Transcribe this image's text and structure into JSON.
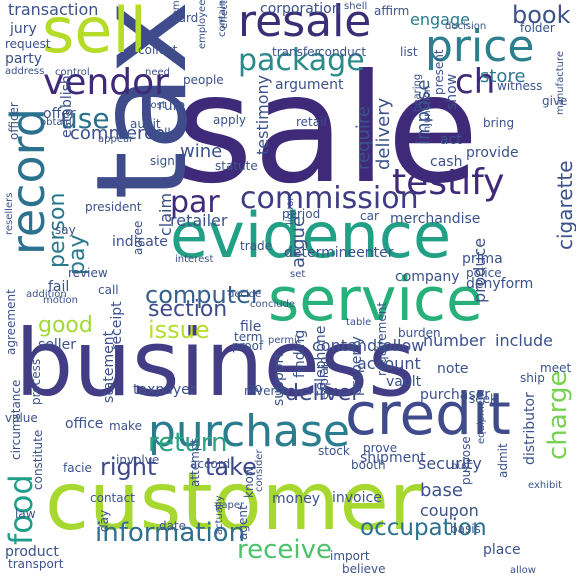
{
  "words": [
    {
      "text": "sale",
      "color": "#3f2a7a"
    },
    {
      "text": "business",
      "color": "#433d86"
    },
    {
      "text": "tax",
      "color": "#3f4b8a"
    },
    {
      "text": "customer",
      "color": "#a6d830"
    },
    {
      "text": "evidence",
      "color": "#21a086"
    },
    {
      "text": "service",
      "color": "#27b07a"
    },
    {
      "text": "credit",
      "color": "#3f4b8a"
    },
    {
      "text": "sell",
      "color": "#b6dc2a"
    },
    {
      "text": "purchase",
      "color": "#2a7d8e"
    },
    {
      "text": "resale",
      "color": "#3a2f77"
    },
    {
      "text": "price",
      "color": "#2d7f8e"
    },
    {
      "text": "record",
      "color": "#2c728e"
    },
    {
      "text": "testify",
      "color": "#3f2a7a"
    },
    {
      "text": "vendor",
      "color": "#3f2a7a"
    },
    {
      "text": "package",
      "color": "#2a8a8a"
    },
    {
      "text": "food",
      "color": "#1f9e89"
    },
    {
      "text": "commission",
      "color": "#3f3c85"
    },
    {
      "text": "return",
      "color": "#2aa57f"
    },
    {
      "text": "information",
      "color": "#2f6f8e"
    },
    {
      "text": "receive",
      "color": "#4cc26c"
    },
    {
      "text": "occupation",
      "color": "#2c728e"
    },
    {
      "text": "charge",
      "color": "#7ad151"
    },
    {
      "text": "computer",
      "color": "#355f8d"
    },
    {
      "text": "issue",
      "color": "#b5de2b"
    },
    {
      "text": "book",
      "color": "#3b528b"
    },
    {
      "text": "ch",
      "color": "#3f2a7a"
    },
    {
      "text": "deliver",
      "color": "#3f4b8a"
    },
    {
      "text": "section",
      "color": "#3f4b8a"
    },
    {
      "text": "good",
      "color": "#a2da37"
    },
    {
      "text": "right",
      "color": "#3e4989"
    },
    {
      "text": "take",
      "color": "#3e4989"
    },
    {
      "text": "use",
      "color": "#2d708e"
    },
    {
      "text": "par",
      "color": "#3f2a7a"
    },
    {
      "text": "person",
      "color": "#2a788e"
    },
    {
      "text": "pay",
      "color": "#2a788e"
    },
    {
      "text": "argue",
      "color": "#3b528b"
    },
    {
      "text": "cigarette",
      "color": "#3b528b"
    },
    {
      "text": "delivery",
      "color": "#3b528b"
    },
    {
      "text": "require",
      "color": "#3b528b"
    },
    {
      "text": "impose",
      "color": "#3b528b"
    },
    {
      "text": "testimony",
      "color": "#3b528b"
    },
    {
      "text": "engage",
      "color": "#2a788e"
    },
    {
      "text": "store",
      "color": "#2a788e"
    },
    {
      "text": "wine",
      "color": "#3b528b"
    },
    {
      "text": "claim",
      "color": "#3b528b"
    },
    {
      "text": "retailer",
      "color": "#3b528b"
    },
    {
      "text": "commerce",
      "color": "#3b528b"
    },
    {
      "text": "transaction",
      "color": "#3b528b"
    },
    {
      "text": "base",
      "color": "#3b528b"
    },
    {
      "text": "coupon",
      "color": "#3b528b"
    },
    {
      "text": "money",
      "color": "#3b528b"
    },
    {
      "text": "invoice",
      "color": "#3b528b"
    },
    {
      "text": "security",
      "color": "#3b528b"
    },
    {
      "text": "shipment",
      "color": "#3b528b"
    },
    {
      "text": "contendfollow",
      "color": "#3b528b"
    },
    {
      "text": "determineenter",
      "color": "#3b528b"
    },
    {
      "text": "merchandise",
      "color": "#3b528b"
    },
    {
      "text": "provide",
      "color": "#3b528b"
    },
    {
      "text": "account",
      "color": "#3b528b"
    },
    {
      "text": "purchaser",
      "color": "#3b528b"
    },
    {
      "text": "number",
      "color": "#3b528b"
    },
    {
      "text": "include",
      "color": "#3b528b"
    },
    {
      "text": "company",
      "color": "#3b528b"
    },
    {
      "text": "denyform",
      "color": "#3b528b"
    },
    {
      "text": "produce",
      "color": "#3b528b"
    },
    {
      "text": "vault",
      "color": "#3b528b"
    },
    {
      "text": "note",
      "color": "#3b528b"
    },
    {
      "text": "property",
      "color": "#3b528b"
    },
    {
      "text": "statement",
      "color": "#3b528b"
    },
    {
      "text": "telephone",
      "color": "#3b528b"
    },
    {
      "text": "taxpayer",
      "color": "#3b528b"
    },
    {
      "text": "receipt",
      "color": "#3b528b"
    },
    {
      "text": "indicate",
      "color": "#3b528b"
    },
    {
      "text": "agree",
      "color": "#3b528b"
    },
    {
      "text": "corporation",
      "color": "#3b528b"
    },
    {
      "text": "jury",
      "color": "#3b528b"
    },
    {
      "text": "party",
      "color": "#3b528b"
    },
    {
      "text": "request",
      "color": "#3b528b"
    },
    {
      "text": "card",
      "color": "#3b528b"
    },
    {
      "text": "item",
      "color": "#3b528b"
    },
    {
      "text": "affirm",
      "color": "#3b528b"
    },
    {
      "text": "folder",
      "color": "#3b528b"
    },
    {
      "text": "decision",
      "color": "#3b528b"
    },
    {
      "text": "shell",
      "color": "#3b528b"
    },
    {
      "text": "conduct",
      "color": "#3b528b"
    },
    {
      "text": "transfer",
      "color": "#3b528b"
    },
    {
      "text": "collect",
      "color": "#3b528b"
    },
    {
      "text": "list",
      "color": "#3b528b"
    },
    {
      "text": "address",
      "color": "#3b528b"
    },
    {
      "text": "control",
      "color": "#3b528b"
    },
    {
      "text": "need",
      "color": "#3b528b"
    },
    {
      "text": "people",
      "color": "#3b528b"
    },
    {
      "text": "argument",
      "color": "#3b528b"
    },
    {
      "text": "witness",
      "color": "#3b528b"
    },
    {
      "text": "hearing",
      "color": "#3b528b"
    },
    {
      "text": "give",
      "color": "#3b528b"
    },
    {
      "text": "bring",
      "color": "#3b528b"
    },
    {
      "text": "show",
      "color": "#3b528b"
    },
    {
      "text": "present",
      "color": "#3b528b"
    },
    {
      "text": "rule",
      "color": "#3b528b"
    },
    {
      "text": "cost",
      "color": "#3b528b"
    },
    {
      "text": "offer",
      "color": "#3b528b"
    },
    {
      "text": "audit",
      "color": "#3b528b"
    },
    {
      "text": "tell",
      "color": "#3b528b"
    },
    {
      "text": "apply",
      "color": "#3b528b"
    },
    {
      "text": "retail",
      "color": "#3b528b"
    },
    {
      "text": "act",
      "color": "#3b528b"
    },
    {
      "text": "cash",
      "color": "#3b528b"
    },
    {
      "text": "establish",
      "color": "#3b528b"
    },
    {
      "text": "say",
      "color": "#3b528b"
    },
    {
      "text": "sign",
      "color": "#3b528b"
    },
    {
      "text": "statute",
      "color": "#3b528b"
    },
    {
      "text": "period",
      "color": "#3b528b"
    },
    {
      "text": "liquor",
      "color": "#3b528b"
    },
    {
      "text": "car",
      "color": "#3b528b"
    },
    {
      "text": "president",
      "color": "#3b528b"
    },
    {
      "text": "trade",
      "color": "#3b528b"
    },
    {
      "text": "interest",
      "color": "#3b528b"
    },
    {
      "text": "set",
      "color": "#3b528b"
    },
    {
      "text": "prima",
      "color": "#3b528b"
    },
    {
      "text": "police",
      "color": "#3b528b"
    },
    {
      "text": "review",
      "color": "#3b528b"
    },
    {
      "text": "fail",
      "color": "#3b528b"
    },
    {
      "text": "call",
      "color": "#3b528b"
    },
    {
      "text": "motion",
      "color": "#3b528b"
    },
    {
      "text": "table",
      "color": "#3b528b"
    },
    {
      "text": "file",
      "color": "#3b528b"
    },
    {
      "text": "term",
      "color": "#3b528b"
    },
    {
      "text": "seller",
      "color": "#3b528b"
    },
    {
      "text": "burden",
      "color": "#3b528b"
    },
    {
      "text": "proof",
      "color": "#3b528b"
    },
    {
      "text": "finding",
      "color": "#3b528b"
    },
    {
      "text": "support",
      "color": "#3b528b"
    },
    {
      "text": "permit",
      "color": "#3b528b"
    },
    {
      "text": "requirement",
      "color": "#3b528b"
    },
    {
      "text": "meet",
      "color": "#3b528b"
    },
    {
      "text": "ship",
      "color": "#3b528b"
    },
    {
      "text": "process",
      "color": "#3b528b"
    },
    {
      "text": "go",
      "color": "#3b528b"
    },
    {
      "text": "explain",
      "color": "#3b528b"
    },
    {
      "text": "seek",
      "color": "#3b528b"
    },
    {
      "text": "reverse",
      "color": "#3b528b"
    },
    {
      "text": "value",
      "color": "#3b528b"
    },
    {
      "text": "office",
      "color": "#3b528b"
    },
    {
      "text": "make",
      "color": "#3b528b"
    },
    {
      "text": "involve",
      "color": "#3b528b"
    },
    {
      "text": "accord",
      "color": "#3b528b"
    },
    {
      "text": "stock",
      "color": "#3b528b"
    },
    {
      "text": "prove",
      "color": "#3b528b"
    },
    {
      "text": "booth",
      "color": "#3b528b"
    },
    {
      "text": "admit",
      "color": "#3b528b"
    },
    {
      "text": "distributor",
      "color": "#3b528b"
    },
    {
      "text": "constitute",
      "color": "#3b528b"
    },
    {
      "text": "facie",
      "color": "#3b528b"
    },
    {
      "text": "contact",
      "color": "#3b528b"
    },
    {
      "text": "purpose",
      "color": "#3b528b"
    },
    {
      "text": "buy",
      "color": "#3b528b"
    },
    {
      "text": "exhibit",
      "color": "#3b528b"
    },
    {
      "text": "law",
      "color": "#3b528b"
    },
    {
      "text": "day",
      "color": "#3b528b"
    },
    {
      "text": "date",
      "color": "#3b528b"
    },
    {
      "text": "attempt",
      "color": "#3b528b"
    },
    {
      "text": "paper",
      "color": "#3b528b"
    },
    {
      "text": "know",
      "color": "#3b528b"
    },
    {
      "text": "consider",
      "color": "#3b528b"
    },
    {
      "text": "actually",
      "color": "#3b528b"
    },
    {
      "text": "agent",
      "color": "#3b528b"
    },
    {
      "text": "basis",
      "color": "#3b528b"
    },
    {
      "text": "place",
      "color": "#3b528b"
    },
    {
      "text": "allow",
      "color": "#3b528b"
    },
    {
      "text": "import",
      "color": "#3b528b"
    },
    {
      "text": "believe",
      "color": "#3b528b"
    },
    {
      "text": "product",
      "color": "#3b528b"
    },
    {
      "text": "transport",
      "color": "#3b528b"
    },
    {
      "text": "circumstance",
      "color": "#3b528b"
    },
    {
      "text": "officer",
      "color": "#3b528b"
    },
    {
      "text": "resellers",
      "color": "#3b528b"
    },
    {
      "text": "addition",
      "color": "#3b528b"
    },
    {
      "text": "agreement",
      "color": "#3b528b"
    },
    {
      "text": "employee",
      "color": "#3b528b"
    },
    {
      "text": "effect",
      "color": "#3b528b"
    },
    {
      "text": "contain",
      "color": "#3b528b"
    },
    {
      "text": "manufacture",
      "color": "#3b528b"
    },
    {
      "text": "injunction",
      "color": "#3b528b"
    },
    {
      "text": "obtain",
      "color": "#3b528b"
    },
    {
      "text": "appear",
      "color": "#3b528b"
    },
    {
      "text": "conclude",
      "color": "#3b528b"
    },
    {
      "text": "decide",
      "color": "#3b528b"
    },
    {
      "text": "equipment",
      "color": "#3b528b"
    }
  ]
}
